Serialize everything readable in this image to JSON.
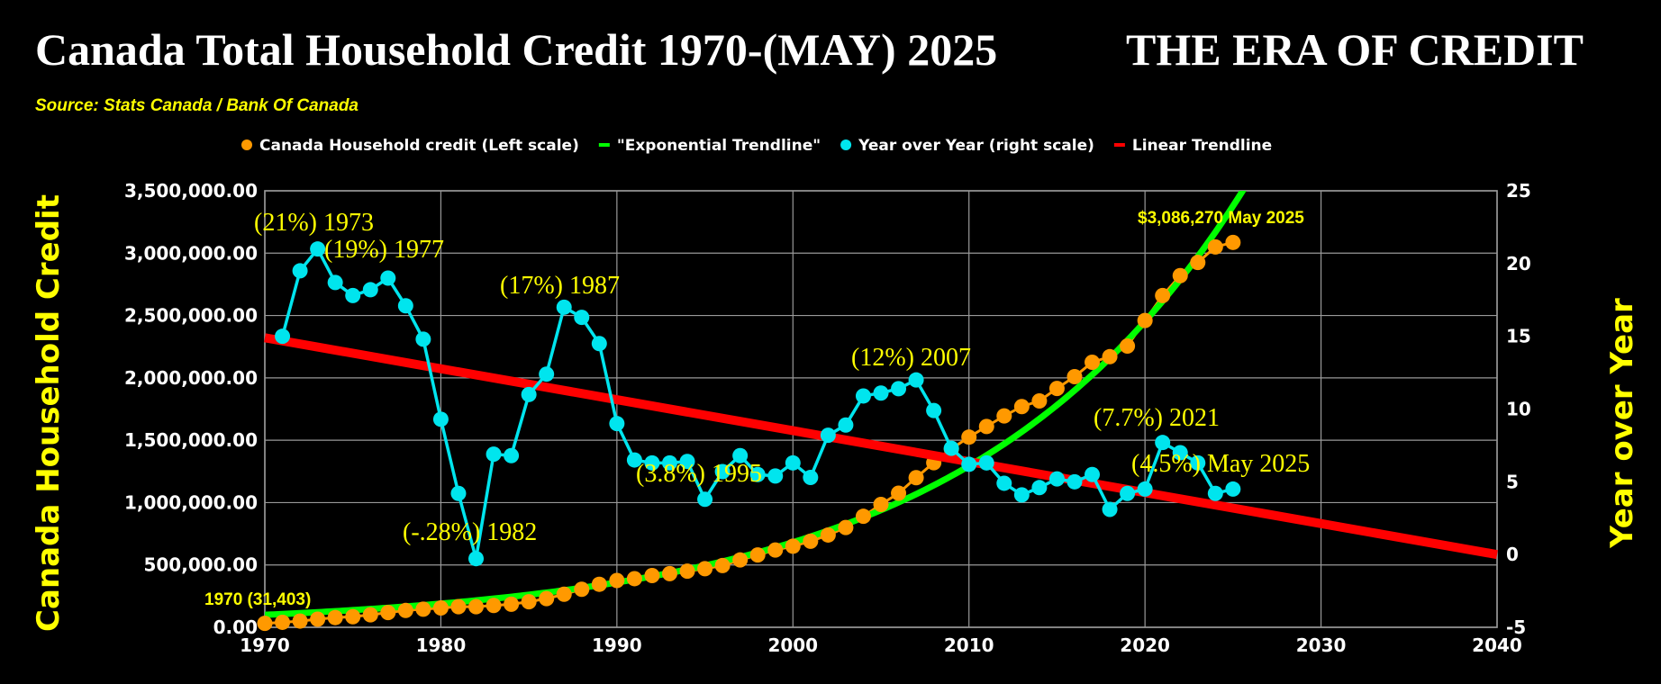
{
  "chart_data": {
    "type": "line",
    "title": "Canada Total Household Credit 1970-(MAY) 2025",
    "title_right": "THE ERA OF CREDIT",
    "subtitle": "Source: Stats Canada / Bank Of Canada",
    "ylabel": "Canada Household Credit",
    "y2label": "Year over Year",
    "xlim": [
      1970,
      2040
    ],
    "ylim": [
      0,
      3500000
    ],
    "y2lim": [
      -5,
      25
    ],
    "grid": true,
    "legend_placement": "top",
    "x_ticks": [
      "1970",
      "1980",
      "1990",
      "2000",
      "2010",
      "2020",
      "2030",
      "2040"
    ],
    "y_ticks": [
      "0.00",
      "500,000.00",
      "1,000,000.00",
      "1,500,000.00",
      "2,000,000.00",
      "2,500,000.00",
      "3,000,000.00",
      "3,500,000.00"
    ],
    "y2_ticks": [
      "-5",
      "0",
      "5",
      "10",
      "15",
      "20",
      "25"
    ],
    "legend": [
      {
        "label": "Canada Household credit (Left scale)",
        "color": "#ff9900",
        "marker": "dot"
      },
      {
        "label": "\"Exponential Trendline\"",
        "color": "#00ff00",
        "marker": "dash"
      },
      {
        "label": "Year over Year (right scale)",
        "color": "#00e5ee",
        "marker": "dot"
      },
      {
        "label": "Linear Trendline",
        "color": "#ff0000",
        "marker": "dash"
      }
    ],
    "series": [
      {
        "name": "Canada Household credit (Left scale)",
        "axis": "left",
        "color": "#ff9900",
        "x": [
          1970,
          1971,
          1972,
          1973,
          1974,
          1975,
          1976,
          1977,
          1978,
          1979,
          1980,
          1981,
          1982,
          1983,
          1984,
          1985,
          1986,
          1987,
          1988,
          1989,
          1990,
          1991,
          1992,
          1993,
          1994,
          1995,
          1996,
          1997,
          1998,
          1999,
          2000,
          2001,
          2002,
          2003,
          2004,
          2005,
          2006,
          2007,
          2008,
          2009,
          2010,
          2011,
          2012,
          2013,
          2014,
          2015,
          2016,
          2017,
          2018,
          2019,
          2020,
          2021,
          2022,
          2023,
          2024,
          2025
        ],
        "values": [
          31403,
          40000,
          50000,
          65000,
          78000,
          85000,
          100000,
          118000,
          135000,
          145000,
          155000,
          165000,
          165000,
          175000,
          185000,
          205000,
          230000,
          265000,
          305000,
          345000,
          375000,
          390000,
          415000,
          430000,
          450000,
          470000,
          495000,
          540000,
          580000,
          620000,
          650000,
          690000,
          740000,
          800000,
          890000,
          985000,
          1075000,
          1200000,
          1320000,
          1430000,
          1525000,
          1610000,
          1695000,
          1770000,
          1815000,
          1915000,
          2010000,
          2125000,
          2170000,
          2255000,
          2460000,
          2660000,
          2820000,
          2925000,
          3050000,
          3086270
        ]
      },
      {
        "name": "Year over Year (right scale)",
        "axis": "right",
        "color": "#00e5ee",
        "x": [
          1971,
          1972,
          1973,
          1974,
          1975,
          1976,
          1977,
          1978,
          1979,
          1980,
          1981,
          1982,
          1983,
          1984,
          1985,
          1986,
          1987,
          1988,
          1989,
          1990,
          1991,
          1992,
          1993,
          1994,
          1995,
          1996,
          1997,
          1998,
          1999,
          2000,
          2001,
          2002,
          2003,
          2004,
          2005,
          2006,
          2007,
          2008,
          2009,
          2010,
          2011,
          2012,
          2013,
          2014,
          2015,
          2016,
          2017,
          2018,
          2019,
          2020,
          2021,
          2022,
          2023,
          2024,
          2025
        ],
        "values": [
          15.0,
          19.5,
          21.0,
          18.7,
          17.8,
          18.2,
          19.0,
          17.1,
          14.8,
          9.3,
          4.2,
          -0.28,
          6.9,
          6.8,
          11.0,
          12.4,
          17.0,
          16.3,
          14.5,
          9.0,
          6.5,
          6.3,
          6.3,
          6.4,
          3.8,
          5.7,
          6.8,
          5.5,
          5.4,
          6.3,
          5.3,
          8.2,
          8.9,
          10.9,
          11.1,
          11.4,
          12.0,
          9.9,
          7.3,
          6.2,
          6.3,
          4.9,
          4.1,
          4.6,
          5.2,
          5.0,
          5.5,
          3.1,
          4.2,
          4.5,
          7.7,
          7.0,
          6.3,
          4.2,
          4.5
        ]
      },
      {
        "name": "\"Exponential Trendline\"",
        "axis": "left",
        "color": "#00ff00",
        "model": "exponential",
        "start_value": 100000,
        "start_x": 1970,
        "growth_rate": 0.064
      },
      {
        "name": "Linear Trendline",
        "axis": "right",
        "color": "#ff0000",
        "model": "linear",
        "x": [
          1970,
          2040
        ],
        "values": [
          14.9,
          0
        ]
      }
    ],
    "annotations": [
      "(21%) 1973",
      "(19%) 1977",
      "(17%) 1987",
      "(-.28%) 1982",
      "(3.8%) 1995",
      "(12%) 2007",
      "(7.7%) 2021",
      "(4.5%) May 2025",
      "$3,086,270 May 2025",
      "1970 (31,403)"
    ]
  }
}
